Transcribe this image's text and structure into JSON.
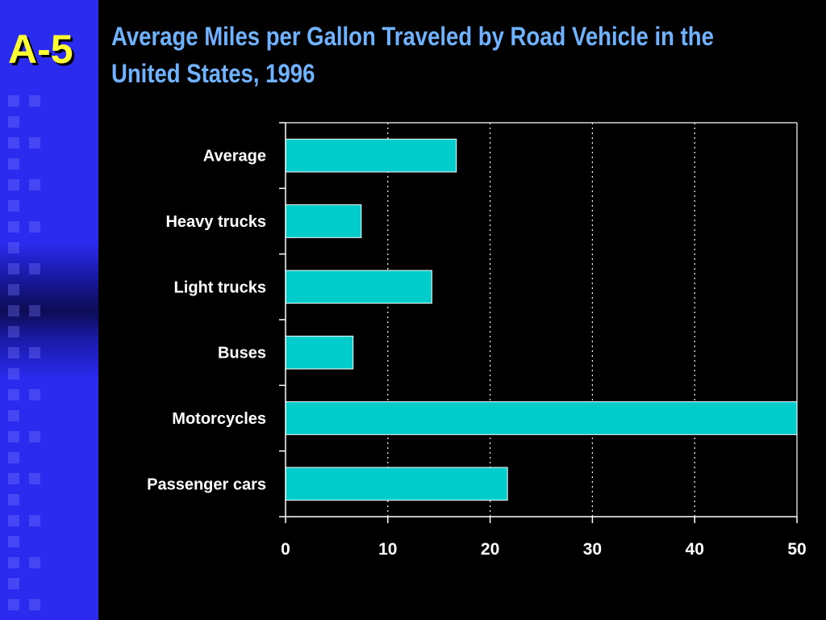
{
  "slide": {
    "number": "A-5",
    "title": "Average Miles per Gallon Traveled by Road Vehicle in the United States, 1996"
  },
  "colors": {
    "background": "#000000",
    "sidebar": "#2b2bf0",
    "title": "#6fb2ff",
    "slide_number": "#ffff33",
    "bar_fill": "#00cccc",
    "bar_stroke": "#ffffff",
    "text": "#ffffff"
  },
  "chart_data": {
    "type": "bar",
    "orientation": "horizontal",
    "title": "",
    "xlabel": "",
    "ylabel": "",
    "categories": [
      "Average",
      "Heavy trucks",
      "Light trucks",
      "Buses",
      "Motorcycles",
      "Passenger cars"
    ],
    "values": [
      16.7,
      7.4,
      14.3,
      6.6,
      50.0,
      21.7
    ],
    "xlim": [
      0,
      50
    ],
    "xticks": [
      0,
      10,
      20,
      30,
      40,
      50
    ],
    "grid": "vertical dotted",
    "legend": "none"
  }
}
